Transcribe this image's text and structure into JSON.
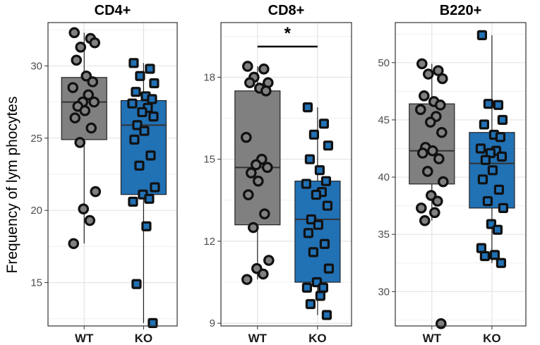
{
  "chart_data": {
    "type": "boxplot",
    "ylabel": "Frequency of lym phocytes",
    "categories": [
      "WT",
      "KO"
    ],
    "colors": {
      "WT": "#808080",
      "KO": "#2171b5"
    },
    "panels": [
      {
        "title": "CD4+",
        "ylim": [
          12,
          33
        ],
        "yticks": [
          15,
          20,
          25,
          30
        ],
        "series": [
          {
            "name": "WT",
            "box": {
              "whisker_low": 17.7,
              "q1": 24.9,
              "median": 27.5,
              "q3": 29.2,
              "whisker_high": 32.3
            },
            "points": [
              32.3,
              31.9,
              31.3,
              31.6,
              30.4,
              29.3,
              28.9,
              28.5,
              28.0,
              27.5,
              27.5,
              27.2,
              26.9,
              26.4,
              25.7,
              24.7,
              21.3,
              20.1,
              19.3,
              17.7
            ]
          },
          {
            "name": "KO",
            "box": {
              "whisker_low": 12.2,
              "q1": 21.1,
              "median": 25.9,
              "q3": 27.6,
              "whisker_high": 30.2
            },
            "points": [
              30.2,
              29.8,
              29.3,
              28.8,
              28.2,
              27.9,
              27.7,
              27.4,
              27.1,
              26.8,
              26.5,
              25.9,
              25.5,
              24.9,
              23.8,
              23.1,
              21.6,
              21.1,
              20.8,
              20.6,
              18.9,
              14.9,
              12.2
            ]
          }
        ]
      },
      {
        "title": "CD8+",
        "ylim": [
          8.9,
          20.0
        ],
        "yticks": [
          9,
          12,
          15,
          18
        ],
        "significance": "*",
        "series": [
          {
            "name": "WT",
            "box": {
              "whisker_low": 10.6,
              "q1": 12.6,
              "median": 14.7,
              "q3": 17.5,
              "whisker_high": 18.4
            },
            "points": [
              18.4,
              18.3,
              18.0,
              17.8,
              17.8,
              17.6,
              17.5,
              15.8,
              15.0,
              14.8,
              14.7,
              14.5,
              14.2,
              13.7,
              13.0,
              12.5,
              11.3,
              11.0,
              10.8,
              10.6
            ]
          },
          {
            "name": "KO",
            "box": {
              "whisker_low": 9.3,
              "q1": 10.5,
              "median": 12.8,
              "q3": 14.2,
              "whisker_high": 16.9
            },
            "points": [
              16.9,
              16.3,
              15.9,
              15.5,
              15.0,
              14.6,
              14.2,
              14.1,
              13.8,
              13.7,
              13.3,
              12.8,
              12.6,
              12.3,
              11.9,
              11.6,
              11.0,
              10.5,
              10.3,
              10.3,
              10.0,
              9.7,
              9.3
            ]
          }
        ]
      },
      {
        "title": "B220+",
        "ylim": [
          27,
          53.5
        ],
        "yticks": [
          30,
          35,
          40,
          45,
          50
        ],
        "series": [
          {
            "name": "WT",
            "box": {
              "whisker_low": 36.2,
              "q1": 39.4,
              "median": 42.3,
              "q3": 46.4,
              "whisker_high": 49.9
            },
            "points": [
              49.9,
              49.3,
              49.0,
              48.6,
              47.1,
              46.6,
              46.3,
              45.9,
              45.3,
              44.8,
              43.9,
              42.6,
              42.3,
              42.1,
              41.6,
              40.5,
              39.6,
              38.4,
              37.9,
              37.3,
              36.9,
              36.2,
              27.2
            ]
          },
          {
            "name": "KO",
            "box": {
              "whisker_low": 32.5,
              "q1": 37.3,
              "median": 41.2,
              "q3": 43.9,
              "whisker_high": 52.4
            },
            "points": [
              52.4,
              46.3,
              46.4,
              45.0,
              44.6,
              43.7,
              43.5,
              42.5,
              42.3,
              42.1,
              41.8,
              41.5,
              40.6,
              39.8,
              38.9,
              37.9,
              37.3,
              35.9,
              35.4,
              33.8,
              33.2,
              33.1,
              32.5
            ]
          }
        ]
      }
    ]
  }
}
